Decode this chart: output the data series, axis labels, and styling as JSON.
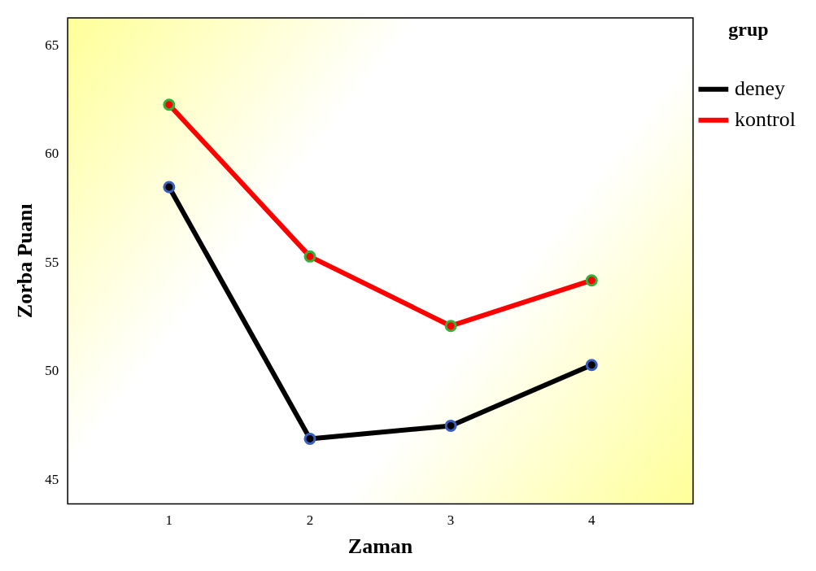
{
  "chart_data": {
    "type": "line",
    "xlabel": "Zaman",
    "ylabel": "Zorba Puanı",
    "legend_title": "grup",
    "x": [
      1,
      2,
      3,
      4
    ],
    "series": [
      {
        "name": "deney",
        "color": "#000000",
        "values": [
          58.5,
          46.9,
          47.5,
          50.3
        ]
      },
      {
        "name": "kontrol",
        "color": "#ff0000",
        "values": [
          62.3,
          55.3,
          52.1,
          54.2
        ]
      }
    ],
    "xlim": [
      0.28,
      4.72
    ],
    "xticks": [
      1,
      2,
      3,
      4
    ],
    "ylim": [
      43.9,
      66.3
    ],
    "yticks": [
      45,
      50,
      55,
      60,
      65
    ],
    "grid": false,
    "legend": "top right",
    "marker": "circle",
    "line_style": "solid"
  }
}
